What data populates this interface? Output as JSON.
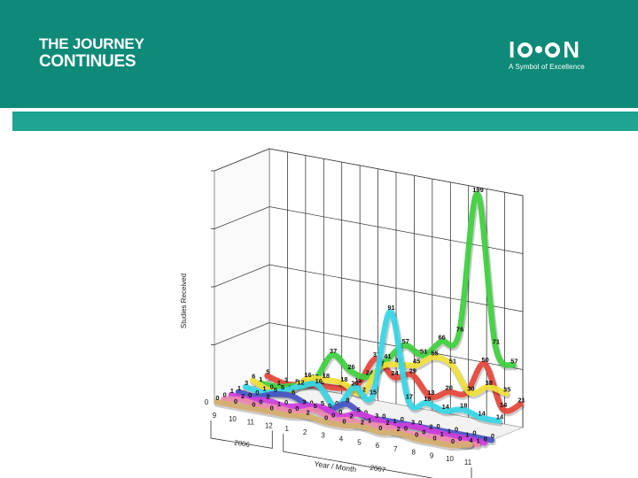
{
  "header": {
    "title_line1": "THE JOURNEY",
    "title_line2": "CONTINUES",
    "logo_text": "ICON",
    "logo_tagline": "A Symbol of Excellence",
    "banner_color": "#0f8a78",
    "strip_color": "#1ea48f"
  },
  "chart_data": {
    "type": "line",
    "style": "3d-ribbon",
    "ylabel": "Studies Received",
    "xlabel": "Year / Month",
    "x_tick_labels": [
      "9",
      "10",
      "11",
      "12",
      "1",
      "2",
      "3",
      "4",
      "5",
      "6",
      "7",
      "8",
      "9",
      "10",
      "11"
    ],
    "year_groups": [
      {
        "label": "2006",
        "months": [
          "9",
          "10",
          "11",
          "12"
        ]
      },
      {
        "label": "2007",
        "months": [
          "1",
          "2",
          "3",
          "4",
          "5",
          "6",
          "7",
          "8",
          "9",
          "10",
          "11"
        ]
      }
    ],
    "ylim": [
      0,
      200
    ],
    "grid": true,
    "legend": "none",
    "series": [
      {
        "color": "#e8473a",
        "values": [
          5,
          1,
          3,
          5,
          6,
          12,
          37,
          24,
          29,
          13,
          20,
          22,
          50,
          14,
          21
        ]
      },
      {
        "color": "#3fd23f",
        "values": [
          1,
          1,
          5,
          12,
          37,
          26,
          24,
          41,
          57,
          51,
          66,
          76,
          199,
          71,
          57
        ]
      },
      {
        "color": "#f2e23a",
        "values": [
          6,
          0,
          2,
          16,
          18,
          18,
          12,
          37,
          43,
          45,
          55,
          51,
          30,
          38,
          35
        ]
      },
      {
        "color": "#37d8e8",
        "values": [
          3,
          1,
          5,
          12,
          16,
          0,
          20,
          15,
          91,
          17,
          18,
          14,
          18,
          14,
          14
        ]
      },
      {
        "color": "#4a55c6",
        "values": [
          1,
          0,
          5,
          6,
          0,
          0,
          8,
          0,
          0,
          0,
          0,
          0,
          0,
          0,
          0
        ]
      },
      {
        "color": "#d23ee0",
        "values": [
          1,
          0,
          2,
          0,
          3,
          5,
          0,
          5,
          3,
          1,
          3,
          2,
          1,
          1,
          0
        ]
      },
      {
        "color": "#f08ab0",
        "values": [
          0,
          2,
          0,
          1,
          0,
          5,
          0,
          2,
          1,
          2,
          0,
          0,
          1,
          0,
          1
        ]
      },
      {
        "color": "#d8b070",
        "values": [
          0,
          0,
          0,
          0,
          0,
          2,
          0,
          0,
          2,
          0,
          2,
          0,
          0,
          0,
          4
        ]
      }
    ]
  }
}
